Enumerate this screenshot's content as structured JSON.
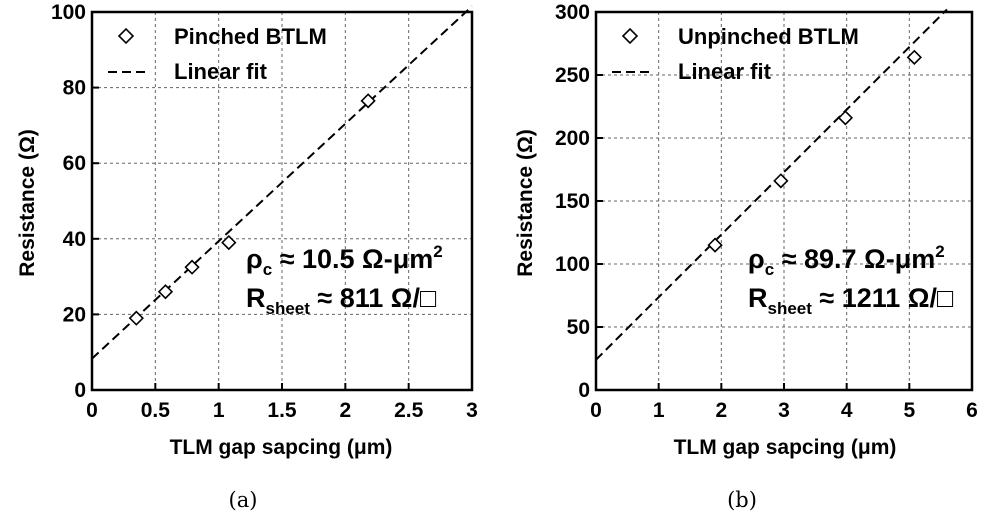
{
  "chart_data": [
    {
      "type": "scatter",
      "xlabel": "TLM gap sapcing (μm)",
      "ylabel": "Resistance (Ω)",
      "xlim": [
        0,
        3
      ],
      "ylim": [
        0,
        100
      ],
      "xticks": [
        "0",
        "0.5",
        "1",
        "1.5",
        "2",
        "2.5",
        "3"
      ],
      "yticks": [
        "0",
        "20",
        "40",
        "60",
        "80",
        "100"
      ],
      "grid": true,
      "legend_position": "top-left",
      "series": [
        {
          "name": "Pinched BTLM",
          "marker": "diamond",
          "x": [
            0.35,
            0.58,
            0.79,
            1.08,
            2.18
          ],
          "y": [
            19,
            26,
            32.5,
            39,
            76.5
          ]
        },
        {
          "name": "Linear fit",
          "style": "dashed",
          "x": [
            0,
            3
          ],
          "y": [
            8.3,
            101.5
          ]
        }
      ],
      "annotations": {
        "rho_symbol": "ρ",
        "rho_sub": "c",
        "rho_value": " ≈ 10.5 Ω-μm",
        "rho_sup": "2",
        "r_symbol": "R",
        "r_sub": "sheet",
        "r_value": " ≈ 811 Ω/□"
      },
      "caption": "(a)"
    },
    {
      "type": "scatter",
      "xlabel": "TLM gap sapcing (μm)",
      "ylabel": "Resistance (Ω)",
      "xlim": [
        0,
        6
      ],
      "ylim": [
        0,
        300
      ],
      "xticks": [
        "0",
        "1",
        "2",
        "3",
        "4",
        "5",
        "6"
      ],
      "yticks": [
        "0",
        "50",
        "100",
        "150",
        "200",
        "250",
        "300"
      ],
      "grid": true,
      "legend_position": "top-left",
      "series": [
        {
          "name": "Unpinched BTLM",
          "marker": "diamond",
          "x": [
            1.9,
            2.95,
            3.98,
            5.08
          ],
          "y": [
            115,
            166,
            216,
            264
          ]
        },
        {
          "name": "Linear fit",
          "style": "dashed",
          "x": [
            0,
            5.6
          ],
          "y": [
            24,
            302
          ]
        }
      ],
      "annotations": {
        "rho_symbol": "ρ",
        "rho_sub": "c",
        "rho_value": " ≈ 89.7 Ω-μm",
        "rho_sup": "2",
        "r_symbol": "R",
        "r_sub": "sheet",
        "r_value": " ≈ 1211 Ω/□"
      },
      "caption": "(b)"
    }
  ]
}
